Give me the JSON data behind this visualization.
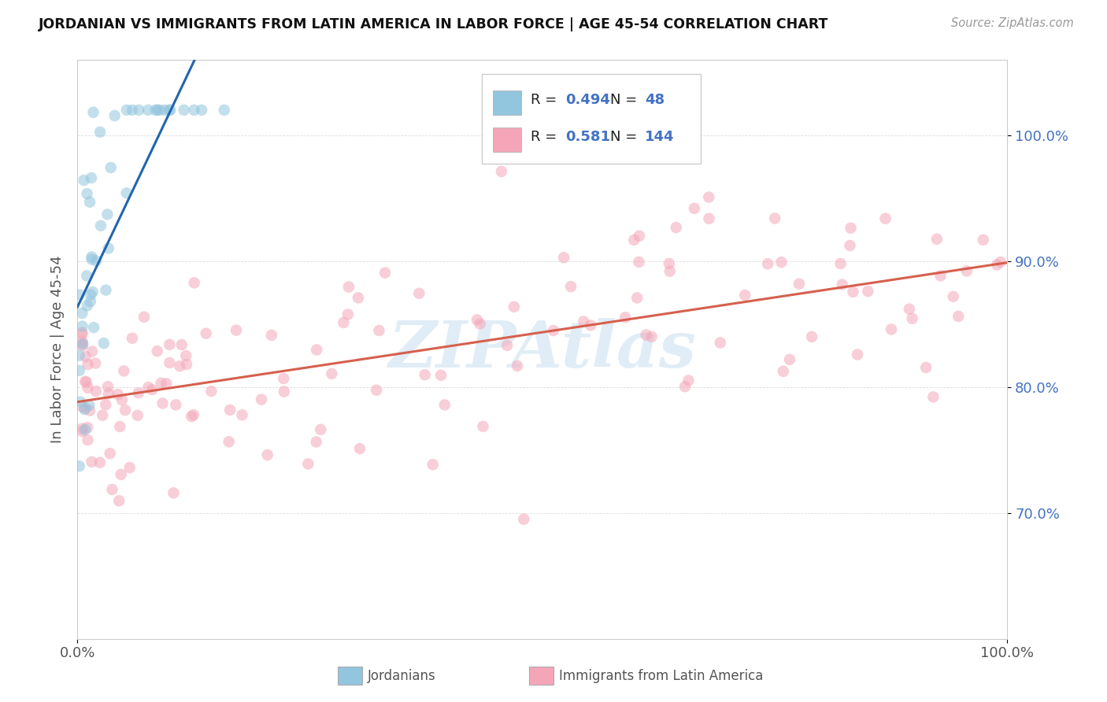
{
  "title": "JORDANIAN VS IMMIGRANTS FROM LATIN AMERICA IN LABOR FORCE | AGE 45-54 CORRELATION CHART",
  "source": "Source: ZipAtlas.com",
  "ylabel": "In Labor Force | Age 45-54",
  "xlim": [
    0,
    1
  ],
  "ylim": [
    0.6,
    1.06
  ],
  "yticks": [
    0.7,
    0.8,
    0.9,
    1.0
  ],
  "ytick_labels": [
    "70.0%",
    "80.0%",
    "90.0%",
    "100.0%"
  ],
  "xticks": [
    0.0,
    1.0
  ],
  "xtick_labels": [
    "0.0%",
    "100.0%"
  ],
  "blue_R": 0.494,
  "blue_N": 48,
  "pink_R": 0.581,
  "pink_N": 144,
  "blue_color": "#92c5de",
  "pink_color": "#f4a6b8",
  "blue_line_color": "#2166ac",
  "pink_line_color": "#d6604d",
  "legend1_label": "Jordanians",
  "legend2_label": "Immigrants from Latin America",
  "watermark": "ZIPAtlas",
  "watermark_color": "#c8dff0"
}
